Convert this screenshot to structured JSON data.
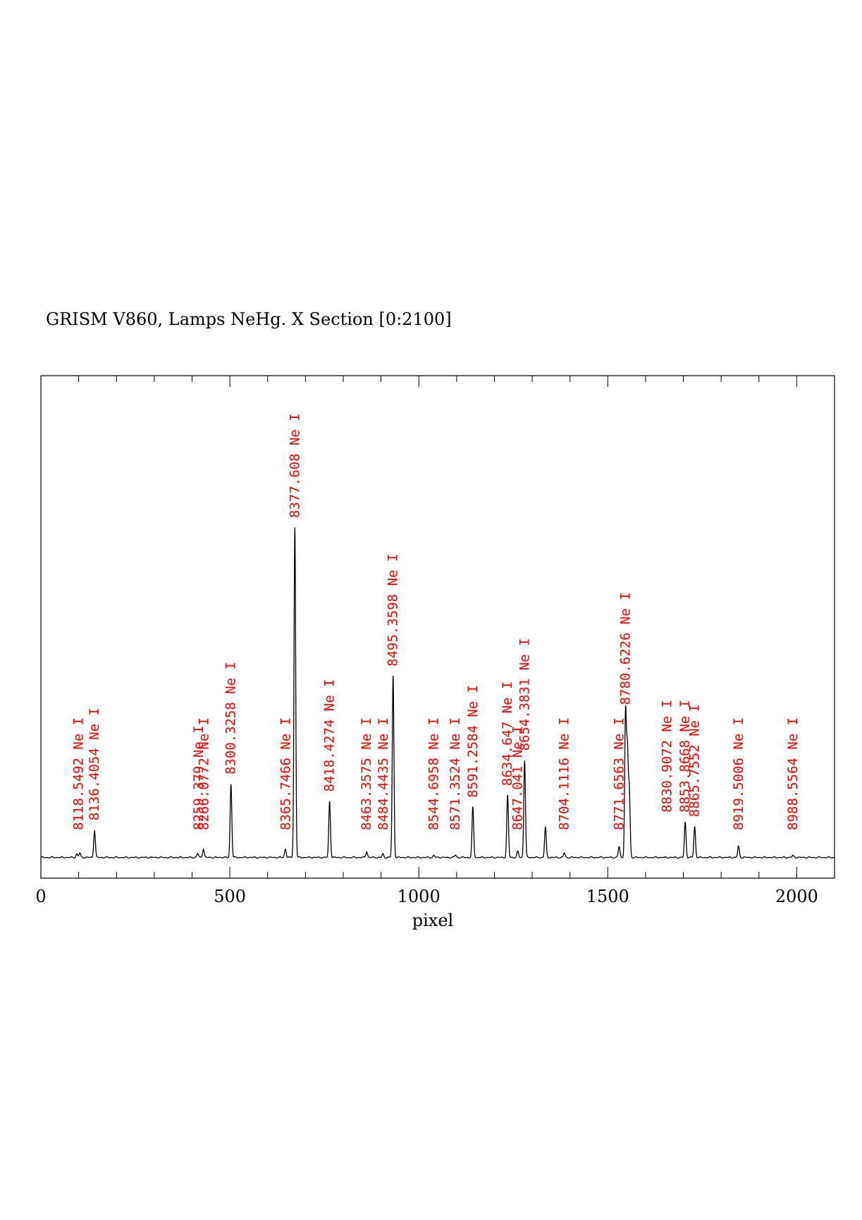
{
  "chart_data": {
    "type": "line",
    "title": "GRISM V860, Lamps NeHg. X Section [0:2100]",
    "xlabel": "pixel",
    "ylabel": "",
    "xlim": [
      0,
      2100
    ],
    "ylim": [
      0,
      1.0
    ],
    "x_ticks": [
      0,
      500,
      1000,
      1500,
      2000
    ],
    "x_tick_labels": [
      "0",
      "500",
      "1000",
      "1500",
      "2000"
    ],
    "x_minor_step": 100,
    "grid": false,
    "baseline": 0.012,
    "series": [
      {
        "peaks": [
          {
            "x": 95,
            "y": 0.007
          },
          {
            "x": 103,
            "y": 0.009
          },
          {
            "x": 142,
            "y": 0.055
          },
          {
            "x": 415,
            "y": 0.008
          },
          {
            "x": 430,
            "y": 0.017
          },
          {
            "x": 503,
            "y": 0.148
          },
          {
            "x": 647,
            "y": 0.017
          },
          {
            "x": 672,
            "y": 0.668
          },
          {
            "x": 764,
            "y": 0.113
          },
          {
            "x": 862,
            "y": 0.012
          },
          {
            "x": 905,
            "y": 0.007
          },
          {
            "x": 932,
            "y": 0.367
          },
          {
            "x": 1040,
            "y": 0.004
          },
          {
            "x": 1097,
            "y": 0.005
          },
          {
            "x": 1143,
            "y": 0.101
          },
          {
            "x": 1235,
            "y": 0.125
          },
          {
            "x": 1262,
            "y": 0.012
          },
          {
            "x": 1280,
            "y": 0.196
          },
          {
            "x": 1335,
            "y": 0.061
          },
          {
            "x": 1385,
            "y": 0.009
          },
          {
            "x": 1530,
            "y": 0.022
          },
          {
            "x": 1547,
            "y": 0.289
          },
          {
            "x": 1552,
            "y": 0.207
          },
          {
            "x": 1557,
            "y": 0.133
          },
          {
            "x": 1705,
            "y": 0.071
          },
          {
            "x": 1730,
            "y": 0.062
          },
          {
            "x": 1846,
            "y": 0.023
          },
          {
            "x": 1990,
            "y": 0.004
          }
        ]
      }
    ],
    "line_labels": [
      {
        "x": 100,
        "text": "8118.5492 Ne I"
      },
      {
        "x": 142,
        "text": "8136.4054 Ne I"
      },
      {
        "x": 418,
        "text": "8259.379 Ne I"
      },
      {
        "x": 432,
        "text": "8266.0772 Ne I"
      },
      {
        "x": 503,
        "text": "8300.3258 Ne I"
      },
      {
        "x": 648,
        "text": "8365.7466 Ne I"
      },
      {
        "x": 672,
        "text": "8377.608 Ne I"
      },
      {
        "x": 764,
        "text": "8418.4274 Ne I"
      },
      {
        "x": 862,
        "text": "8463.3575 Ne I"
      },
      {
        "x": 906,
        "text": "8484.4435 Ne I"
      },
      {
        "x": 932,
        "text": "8495.3598 Ne I"
      },
      {
        "x": 1040,
        "text": "8544.6958 Ne I"
      },
      {
        "x": 1097,
        "text": "8571.3524 Ne I"
      },
      {
        "x": 1143,
        "text": "8591.2584 Ne I"
      },
      {
        "x": 1235,
        "text": "8634.647 Ne I"
      },
      {
        "x": 1262,
        "text": "8647.041 Ne I"
      },
      {
        "x": 1280,
        "text": "8654.3831 Ne I"
      },
      {
        "x": 1385,
        "text": "8704.1116 Ne I"
      },
      {
        "x": 1530,
        "text": "8771.6563 Ne I"
      },
      {
        "x": 1547,
        "text": "8780.6226 Ne I"
      },
      {
        "x": 1657,
        "text": "8830.9072 Ne I"
      },
      {
        "x": 1705,
        "text": "8853.8668 Ne I"
      },
      {
        "x": 1730,
        "text": "8865.7552 Ne I"
      },
      {
        "x": 1846,
        "text": "8919.5006 Ne I"
      },
      {
        "x": 1990,
        "text": "8988.5564 Ne I"
      }
    ],
    "colors": {
      "spectrum": "#000000",
      "labels": "#ff0000",
      "axes": "#000000"
    }
  }
}
